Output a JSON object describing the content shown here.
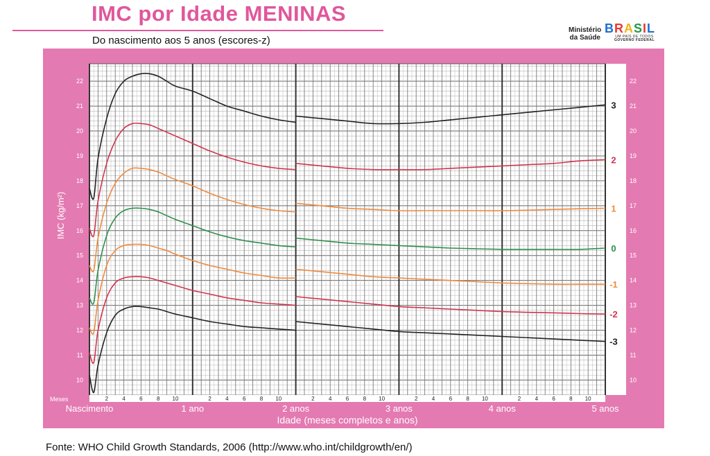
{
  "header": {
    "title": "IMC por Idade MENINAS",
    "subtitle": "Do nascimento aos 5 anos (escores-z)",
    "logo_ministerio_line1": "Ministério",
    "logo_ministerio_line2": "da Saúde",
    "logo_brasil": "BRASIL",
    "logo_tagline": "UM PAÍS DE TODOS",
    "logo_governo": "GOVERNO FEDERAL"
  },
  "footer": {
    "source": "Fonte: WHO Child Growth Standards, 2006 (http://www.who.int/childgrowth/en/)"
  },
  "colors": {
    "panel": "#e47ab2",
    "title": "#e0579c",
    "z3": "#222222",
    "z2": "#d2344f",
    "z1": "#f08a3c",
    "z0": "#2f8f4e"
  },
  "chart_data": {
    "type": "line",
    "ylabel": "IMC (kg/m²)",
    "xlabel": "Idade (meses completos e anos)",
    "ylim": [
      9.4,
      22.7
    ],
    "xlim": [
      0,
      60
    ],
    "grid": true,
    "y_ticks": [
      10,
      11,
      12,
      13,
      14,
      15,
      16,
      17,
      18,
      19,
      20,
      21,
      22
    ],
    "x_month_label": "Meses",
    "x_minor_tick_values": [
      2,
      4,
      6,
      8,
      10,
      14,
      16,
      18,
      20,
      22,
      26,
      28,
      30,
      32,
      34,
      38,
      40,
      42,
      44,
      46,
      50,
      52,
      54,
      56,
      58
    ],
    "x_minor_tick_labels": [
      "2",
      "4",
      "6",
      "8",
      "10",
      "2",
      "4",
      "6",
      "8",
      "10",
      "2",
      "4",
      "6",
      "8",
      "10",
      "2",
      "4",
      "6",
      "8",
      "10",
      "2",
      "4",
      "6",
      "8",
      "10"
    ],
    "x_major_ticks": [
      {
        "x": 0,
        "label": "Nascimento"
      },
      {
        "x": 12,
        "label": "1 ano"
      },
      {
        "x": 24,
        "label": "2 anos"
      },
      {
        "x": 36,
        "label": "3 anos"
      },
      {
        "x": 48,
        "label": "4 anos"
      },
      {
        "x": 60,
        "label": "5 anos"
      }
    ],
    "series": [
      {
        "name": "3",
        "color": "#222222",
        "x": [
          0,
          0.5,
          1,
          2,
          3,
          4,
          5,
          6,
          7,
          8,
          9,
          10,
          12,
          14,
          16,
          18,
          20,
          22,
          24,
          24,
          27,
          30,
          33,
          36,
          39,
          42,
          45,
          48,
          51,
          54,
          57,
          60
        ],
        "y": [
          17.7,
          17.3,
          18.9,
          20.5,
          21.5,
          22.0,
          22.2,
          22.3,
          22.3,
          22.2,
          22.0,
          21.8,
          21.6,
          21.3,
          21.0,
          20.8,
          20.6,
          20.45,
          20.35,
          20.6,
          20.5,
          20.4,
          20.3,
          20.3,
          20.35,
          20.45,
          20.55,
          20.65,
          20.75,
          20.85,
          20.95,
          21.05
        ]
      },
      {
        "name": "2",
        "color": "#d2344f",
        "x": [
          0,
          0.5,
          1,
          2,
          3,
          4,
          5,
          6,
          7,
          8,
          9,
          10,
          12,
          14,
          16,
          18,
          20,
          22,
          24,
          24,
          27,
          30,
          33,
          36,
          39,
          42,
          45,
          48,
          51,
          54,
          57,
          60
        ],
        "y": [
          16.1,
          15.8,
          17.2,
          18.7,
          19.6,
          20.1,
          20.3,
          20.3,
          20.25,
          20.1,
          19.95,
          19.8,
          19.5,
          19.2,
          18.95,
          18.75,
          18.6,
          18.5,
          18.45,
          18.7,
          18.6,
          18.5,
          18.45,
          18.45,
          18.45,
          18.5,
          18.55,
          18.6,
          18.65,
          18.7,
          18.8,
          18.85
        ]
      },
      {
        "name": "1",
        "color": "#f08a3c",
        "x": [
          0,
          0.5,
          1,
          2,
          3,
          4,
          5,
          6,
          7,
          8,
          9,
          10,
          12,
          14,
          16,
          18,
          20,
          22,
          24,
          24,
          27,
          30,
          33,
          36,
          39,
          42,
          45,
          48,
          51,
          54,
          57,
          60
        ],
        "y": [
          14.6,
          14.4,
          15.7,
          17.1,
          17.9,
          18.3,
          18.5,
          18.5,
          18.45,
          18.35,
          18.2,
          18.05,
          17.8,
          17.5,
          17.25,
          17.05,
          16.9,
          16.8,
          16.75,
          17.1,
          17.0,
          16.9,
          16.85,
          16.8,
          16.8,
          16.8,
          16.8,
          16.8,
          16.82,
          16.85,
          16.88,
          16.9
        ]
      },
      {
        "name": "0",
        "color": "#2f8f4e",
        "x": [
          0,
          0.5,
          1,
          2,
          3,
          4,
          5,
          6,
          7,
          8,
          9,
          10,
          12,
          14,
          16,
          18,
          20,
          22,
          24,
          24,
          27,
          30,
          33,
          36,
          39,
          42,
          45,
          48,
          51,
          54,
          57,
          60
        ],
        "y": [
          13.3,
          13.1,
          14.4,
          15.8,
          16.5,
          16.8,
          16.9,
          16.9,
          16.85,
          16.75,
          16.6,
          16.45,
          16.2,
          15.95,
          15.75,
          15.6,
          15.5,
          15.4,
          15.35,
          15.7,
          15.6,
          15.5,
          15.45,
          15.4,
          15.35,
          15.3,
          15.27,
          15.25,
          15.25,
          15.25,
          15.25,
          15.3
        ]
      },
      {
        "name": "-1",
        "color": "#f08a3c",
        "x": [
          0,
          0.5,
          1,
          2,
          3,
          4,
          5,
          6,
          7,
          8,
          9,
          10,
          12,
          14,
          16,
          18,
          20,
          22,
          24,
          24,
          27,
          30,
          33,
          36,
          39,
          42,
          45,
          48,
          51,
          54,
          57,
          60
        ],
        "y": [
          12.1,
          11.9,
          13.2,
          14.6,
          15.2,
          15.4,
          15.45,
          15.45,
          15.4,
          15.3,
          15.2,
          15.05,
          14.8,
          14.6,
          14.45,
          14.3,
          14.2,
          14.1,
          14.1,
          14.45,
          14.35,
          14.25,
          14.15,
          14.1,
          14.05,
          14.0,
          13.95,
          13.9,
          13.87,
          13.85,
          13.85,
          13.85
        ]
      },
      {
        "name": "-2",
        "color": "#d2344f",
        "x": [
          0,
          0.5,
          1,
          2,
          3,
          4,
          5,
          6,
          7,
          8,
          9,
          10,
          12,
          14,
          16,
          18,
          20,
          22,
          24,
          24,
          27,
          30,
          33,
          36,
          39,
          42,
          45,
          48,
          51,
          54,
          57,
          60
        ],
        "y": [
          11.1,
          10.7,
          12.0,
          13.3,
          13.9,
          14.1,
          14.15,
          14.15,
          14.1,
          14.0,
          13.9,
          13.8,
          13.6,
          13.45,
          13.3,
          13.2,
          13.1,
          13.05,
          13.0,
          13.35,
          13.25,
          13.15,
          13.05,
          12.95,
          12.9,
          12.85,
          12.8,
          12.75,
          12.72,
          12.7,
          12.67,
          12.65
        ]
      },
      {
        "name": "-3",
        "color": "#222222",
        "x": [
          0,
          0.5,
          1,
          2,
          3,
          4,
          5,
          6,
          7,
          8,
          9,
          10,
          12,
          14,
          16,
          18,
          20,
          22,
          24,
          24,
          27,
          30,
          33,
          36,
          39,
          42,
          45,
          48,
          51,
          54,
          57,
          60
        ],
        "y": [
          10.2,
          9.5,
          10.6,
          11.9,
          12.6,
          12.85,
          12.95,
          12.95,
          12.9,
          12.85,
          12.75,
          12.65,
          12.5,
          12.35,
          12.25,
          12.15,
          12.1,
          12.05,
          12.0,
          12.35,
          12.25,
          12.15,
          12.05,
          11.95,
          11.9,
          11.85,
          11.8,
          11.75,
          11.7,
          11.65,
          11.6,
          11.55
        ]
      }
    ]
  }
}
